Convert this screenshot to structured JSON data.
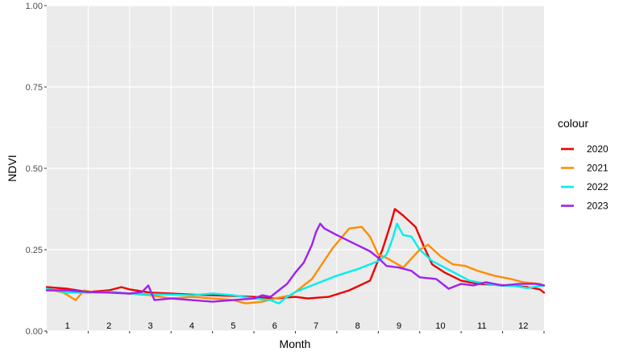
{
  "chart_data": {
    "type": "line",
    "xlabel": "Month",
    "ylabel": "NDVI",
    "ylim": [
      0,
      1
    ],
    "xlim": [
      0,
      12
    ],
    "yticks": [
      0,
      0.25,
      0.5,
      0.75,
      1
    ],
    "ytick_labels": [
      "0.00",
      "0.25",
      "0.50",
      "0.75",
      "1.00"
    ],
    "xtick_labels": [
      "1",
      "2",
      "3",
      "4",
      "5",
      "6",
      "7",
      "8",
      "9",
      "10",
      "11",
      "12"
    ],
    "grid": true,
    "legend": {
      "title": "colour",
      "position": "right"
    },
    "series": [
      {
        "name": "2020",
        "color": "#ee0000",
        "points": [
          [
            0.0,
            0.135
          ],
          [
            0.5,
            0.13
          ],
          [
            1.0,
            0.12
          ],
          [
            1.5,
            0.125
          ],
          [
            1.8,
            0.135
          ],
          [
            2.0,
            0.128
          ],
          [
            2.5,
            0.118
          ],
          [
            3.0,
            0.115
          ],
          [
            3.5,
            0.112
          ],
          [
            4.0,
            0.11
          ],
          [
            4.5,
            0.108
          ],
          [
            5.0,
            0.105
          ],
          [
            5.5,
            0.1
          ],
          [
            6.0,
            0.105
          ],
          [
            6.3,
            0.1
          ],
          [
            6.8,
            0.105
          ],
          [
            7.3,
            0.125
          ],
          [
            7.8,
            0.155
          ],
          [
            8.1,
            0.25
          ],
          [
            8.3,
            0.33
          ],
          [
            8.4,
            0.375
          ],
          [
            8.6,
            0.355
          ],
          [
            8.9,
            0.32
          ],
          [
            9.1,
            0.26
          ],
          [
            9.3,
            0.205
          ],
          [
            9.6,
            0.18
          ],
          [
            10.0,
            0.155
          ],
          [
            10.4,
            0.145
          ],
          [
            10.8,
            0.142
          ],
          [
            11.2,
            0.14
          ],
          [
            11.6,
            0.135
          ],
          [
            11.9,
            0.128
          ],
          [
            12.0,
            0.118
          ]
        ]
      },
      {
        "name": "2021",
        "color": "#ff8c00",
        "points": [
          [
            0.0,
            0.13
          ],
          [
            0.4,
            0.118
          ],
          [
            0.7,
            0.095
          ],
          [
            0.9,
            0.125
          ],
          [
            1.2,
            0.118
          ],
          [
            1.6,
            0.12
          ],
          [
            2.0,
            0.115
          ],
          [
            2.5,
            0.11
          ],
          [
            3.0,
            0.1
          ],
          [
            3.5,
            0.105
          ],
          [
            4.0,
            0.1
          ],
          [
            4.5,
            0.095
          ],
          [
            4.8,
            0.085
          ],
          [
            5.2,
            0.09
          ],
          [
            5.5,
            0.1
          ],
          [
            5.9,
            0.11
          ],
          [
            6.4,
            0.16
          ],
          [
            6.9,
            0.255
          ],
          [
            7.3,
            0.315
          ],
          [
            7.6,
            0.32
          ],
          [
            7.8,
            0.29
          ],
          [
            8.0,
            0.235
          ],
          [
            8.2,
            0.225
          ],
          [
            8.6,
            0.195
          ],
          [
            9.0,
            0.25
          ],
          [
            9.2,
            0.265
          ],
          [
            9.5,
            0.23
          ],
          [
            9.8,
            0.205
          ],
          [
            10.1,
            0.2
          ],
          [
            10.4,
            0.185
          ],
          [
            10.8,
            0.17
          ],
          [
            11.2,
            0.16
          ],
          [
            11.5,
            0.15
          ],
          [
            11.9,
            0.145
          ],
          [
            12.0,
            0.14
          ]
        ]
      },
      {
        "name": "2022",
        "color": "#00eeee",
        "points": [
          [
            0.0,
            0.13
          ],
          [
            0.5,
            0.118
          ],
          [
            1.0,
            0.118
          ],
          [
            1.5,
            0.12
          ],
          [
            2.0,
            0.115
          ],
          [
            2.5,
            0.113
          ],
          [
            3.0,
            0.112
          ],
          [
            3.5,
            0.11
          ],
          [
            4.0,
            0.115
          ],
          [
            4.5,
            0.11
          ],
          [
            5.0,
            0.1
          ],
          [
            5.4,
            0.095
          ],
          [
            5.6,
            0.085
          ],
          [
            5.8,
            0.105
          ],
          [
            6.0,
            0.12
          ],
          [
            6.5,
            0.145
          ],
          [
            7.0,
            0.17
          ],
          [
            7.5,
            0.19
          ],
          [
            8.0,
            0.215
          ],
          [
            8.2,
            0.235
          ],
          [
            8.35,
            0.285
          ],
          [
            8.45,
            0.33
          ],
          [
            8.6,
            0.295
          ],
          [
            8.8,
            0.29
          ],
          [
            9.0,
            0.25
          ],
          [
            9.3,
            0.215
          ],
          [
            9.6,
            0.195
          ],
          [
            9.9,
            0.175
          ],
          [
            10.2,
            0.155
          ],
          [
            10.5,
            0.148
          ],
          [
            10.9,
            0.14
          ],
          [
            11.3,
            0.138
          ],
          [
            11.6,
            0.132
          ],
          [
            12.0,
            0.14
          ]
        ]
      },
      {
        "name": "2023",
        "color": "#a020f0",
        "points": [
          [
            0.0,
            0.125
          ],
          [
            0.5,
            0.125
          ],
          [
            1.0,
            0.12
          ],
          [
            1.5,
            0.118
          ],
          [
            2.0,
            0.115
          ],
          [
            2.3,
            0.12
          ],
          [
            2.45,
            0.14
          ],
          [
            2.6,
            0.095
          ],
          [
            3.0,
            0.1
          ],
          [
            3.5,
            0.095
          ],
          [
            4.0,
            0.09
          ],
          [
            4.5,
            0.095
          ],
          [
            5.0,
            0.1
          ],
          [
            5.2,
            0.11
          ],
          [
            5.4,
            0.105
          ],
          [
            5.6,
            0.125
          ],
          [
            5.8,
            0.145
          ],
          [
            6.0,
            0.18
          ],
          [
            6.2,
            0.21
          ],
          [
            6.4,
            0.265
          ],
          [
            6.5,
            0.305
          ],
          [
            6.6,
            0.33
          ],
          [
            6.7,
            0.315
          ],
          [
            7.0,
            0.295
          ],
          [
            7.4,
            0.27
          ],
          [
            7.8,
            0.245
          ],
          [
            8.0,
            0.225
          ],
          [
            8.2,
            0.2
          ],
          [
            8.5,
            0.195
          ],
          [
            8.8,
            0.185
          ],
          [
            9.0,
            0.165
          ],
          [
            9.4,
            0.16
          ],
          [
            9.7,
            0.13
          ],
          [
            10.0,
            0.145
          ],
          [
            10.3,
            0.14
          ],
          [
            10.6,
            0.15
          ],
          [
            11.0,
            0.14
          ],
          [
            11.4,
            0.145
          ],
          [
            11.8,
            0.145
          ],
          [
            12.0,
            0.14
          ]
        ]
      }
    ]
  }
}
